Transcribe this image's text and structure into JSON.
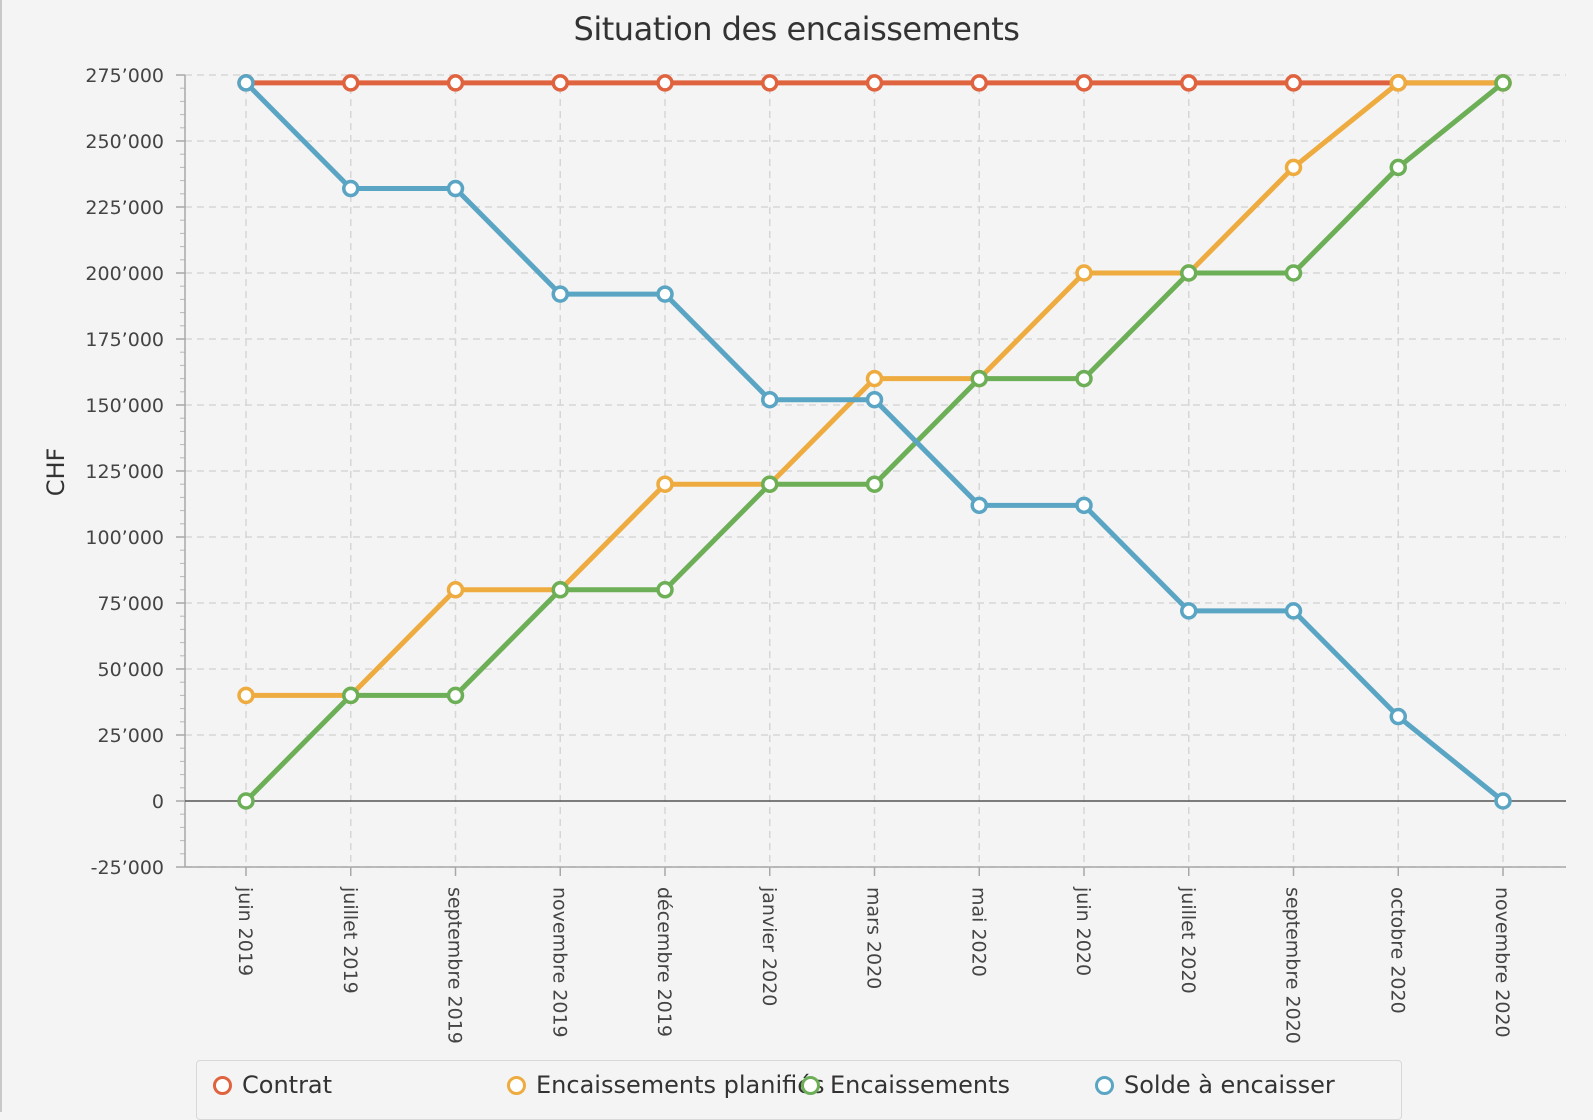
{
  "chart_data": {
    "type": "line",
    "title": "Situation des encaissements",
    "ylabel": "CHF",
    "xlabel": "",
    "ylim": [
      -25000,
      275000
    ],
    "ytick_step": 25000,
    "grid": true,
    "legend_position": "bottom",
    "categories": [
      "juin 2019",
      "juillet 2019",
      "septembre 2019",
      "novembre 2019",
      "décembre 2019",
      "janvier 2020",
      "mars 2020",
      "mai 2020",
      "juin 2020",
      "juillet 2020",
      "septembre 2020",
      "octobre 2020",
      "novembre 2020"
    ],
    "yticks": [
      "-25’000",
      "0",
      "25’000",
      "50’000",
      "75’000",
      "100’000",
      "125’000",
      "150’000",
      "175’000",
      "200’000",
      "225’000",
      "250’000",
      "275’000"
    ],
    "series": [
      {
        "name": "Contrat",
        "color": "#e0633f",
        "values": [
          272000,
          272000,
          272000,
          272000,
          272000,
          272000,
          272000,
          272000,
          272000,
          272000,
          272000,
          272000,
          272000
        ]
      },
      {
        "name": "Encaissements planifiés",
        "color": "#eeab3f",
        "values": [
          40000,
          40000,
          80000,
          80000,
          120000,
          120000,
          160000,
          160000,
          200000,
          200000,
          240000,
          272000,
          272000
        ]
      },
      {
        "name": "Encaissements",
        "color": "#6caf57",
        "values": [
          0,
          40000,
          40000,
          80000,
          80000,
          120000,
          120000,
          160000,
          160000,
          200000,
          200000,
          240000,
          272000
        ]
      },
      {
        "name": "Solde à encaisser",
        "color": "#5ba5c4",
        "values": [
          272000,
          232000,
          232000,
          192000,
          192000,
          152000,
          152000,
          112000,
          112000,
          72000,
          72000,
          32000,
          0
        ]
      }
    ]
  }
}
